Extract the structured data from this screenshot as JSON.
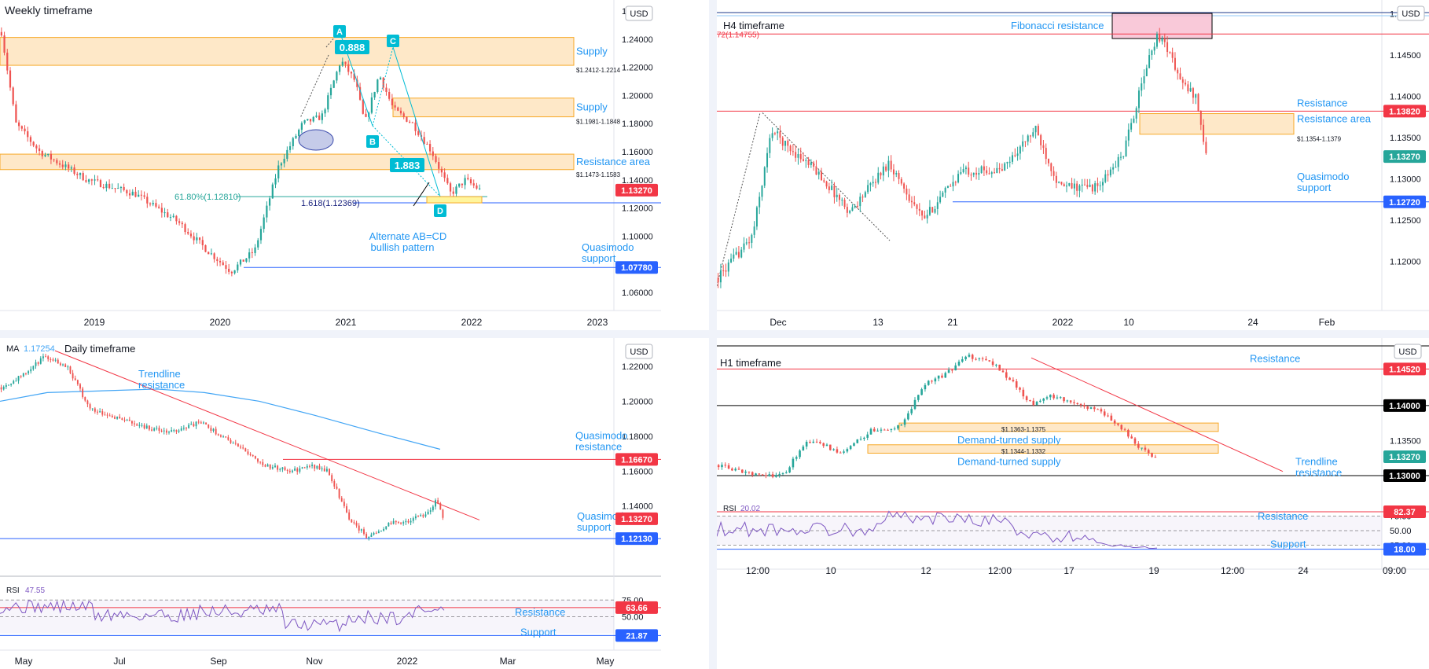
{
  "colors": {
    "up": "#26a69a",
    "down": "#ef5350",
    "zone_fill": "#fde0b6",
    "zone_stroke": "#f7a928",
    "red_line": "#f23645",
    "blue_line": "#2962ff",
    "annot": "#2196f3",
    "ma": "#42a5f5",
    "rsi": "#7e57c2",
    "teal_label": "#00bcd4",
    "axis_text": "#131722"
  },
  "panels": [
    {
      "id": "weekly",
      "title": "Weekly timeframe",
      "currency": "USD",
      "ylim": [
        1.05,
        1.265
      ],
      "ytick_labels": [
        "1.26000",
        "1.24000",
        "1.22000",
        "1.20000",
        "1.18000",
        "1.16000",
        "1.14000",
        "1.12000",
        "1.10000",
        "1.08000",
        "1.06000"
      ],
      "xtick_labels": [
        "2019",
        "2020",
        "2021",
        "2022",
        "2023"
      ],
      "price_tags": [
        {
          "label": "1.13270",
          "value": 1.1327,
          "color": "#f23645"
        },
        {
          "label": "1.07780",
          "value": 1.0778,
          "color": "#2962ff"
        }
      ],
      "zones": [
        {
          "top": 1.2412,
          "bottom": 1.2214,
          "label": "Supply",
          "range_label": "$1.2412-1.2214"
        },
        {
          "top": 1.1981,
          "bottom": 1.1848,
          "label": "Supply",
          "range_label": "$1.1981-1.1848"
        },
        {
          "top": 1.1583,
          "bottom": 1.1473,
          "label": "Resistance area",
          "range_label": "$1.1473-1.1583"
        }
      ],
      "lines": [
        {
          "value": 1.1281,
          "label": "61.80%(1.12810)",
          "color": "#26a69a"
        },
        {
          "value": 1.12369,
          "label": "1.618(1.12369)",
          "color": "#2962ff"
        },
        {
          "value": 1.0778,
          "label": "Quasimodo support",
          "color": "#2962ff"
        }
      ],
      "pattern_points": [
        "A",
        "B",
        "C",
        "D"
      ],
      "pattern_ratios": [
        "0.888",
        "1.883"
      ],
      "pattern_label": "Alternate AB=CD bullish pattern"
    },
    {
      "id": "h4",
      "title": "H4 timeframe",
      "currency": "USD",
      "ylim": [
        1.1145,
        1.1512
      ],
      "ytick_labels": [
        "1.15000",
        "1.14500",
        "1.14000",
        "1.13500",
        "1.13000",
        "1.12500",
        "1.12000"
      ],
      "xtick_labels": [
        "Dec",
        "13",
        "21",
        "2022",
        "10",
        "24",
        "Feb"
      ],
      "price_tags": [
        {
          "label": "1.13820",
          "value": 1.1382,
          "color": "#f23645"
        },
        {
          "label": "1.13270",
          "value": 1.1327,
          "color": "#26a69a"
        },
        {
          "label": "1.12720",
          "value": 1.1272,
          "color": "#2962ff"
        }
      ],
      "zones": [
        {
          "top": 1.1379,
          "bottom": 1.1354,
          "label": "Resistance area",
          "range_label": "$1.1354-1.1379"
        }
      ],
      "lines": [
        {
          "value": 1.14755,
          "label": "72(1.14755)",
          "color": "#f23645"
        },
        {
          "value": 1.1382,
          "label": "Resistance",
          "color": "#f23645"
        },
        {
          "value": 1.1272,
          "label": "Quasimodo support",
          "color": "#2962ff"
        }
      ],
      "fib_label": "Fibonacci resistance"
    },
    {
      "id": "daily",
      "title": "Daily timeframe",
      "ma_label": "MA",
      "ma_value": "1.17254",
      "currency": "USD",
      "ylim": [
        1.102,
        1.234
      ],
      "ytick_labels": [
        "1.22000",
        "1.20000",
        "1.18000",
        "1.16000",
        "1.14000"
      ],
      "xtick_labels": [
        "May",
        "Jul",
        "Sep",
        "Nov",
        "2022",
        "Mar",
        "May"
      ],
      "price_tags": [
        {
          "label": "1.16670",
          "value": 1.1667,
          "color": "#f23645"
        },
        {
          "label": "1.13270",
          "value": 1.1327,
          "color": "#f23645"
        },
        {
          "label": "1.12130",
          "value": 1.1213,
          "color": "#2962ff"
        }
      ],
      "lines": [
        {
          "value": 1.1667,
          "label": "Quasimodo resistance",
          "color": "#f23645"
        },
        {
          "value": 1.1213,
          "label": "Quasimodo support",
          "color": "#2962ff"
        }
      ],
      "trend_label": "Trendline resistance",
      "rsi_label": "RSI",
      "rsi_value": "47.55",
      "rsi_ticks": [
        "75.00",
        "50.00"
      ],
      "rsi_tags": [
        {
          "label": "63.66",
          "value": 63.66,
          "color": "#f23645"
        },
        {
          "label": "21.87",
          "value": 21.87,
          "color": "#2962ff"
        }
      ],
      "rsi_lines": [
        {
          "value": 63.66,
          "label": "Resistance",
          "color": "#f23645"
        },
        {
          "value": 21.87,
          "label": "Support",
          "color": "#2962ff"
        }
      ]
    },
    {
      "id": "h1",
      "title": "H1 timeframe",
      "currency": "USD",
      "ylim": [
        1.1272,
        1.1485
      ],
      "ytick_labels": [
        "1.13500"
      ],
      "xtick_labels": [
        "12:00",
        "10",
        "12",
        "12:00",
        "17",
        "19",
        "12:00",
        "24",
        "09:00"
      ],
      "price_tags": [
        {
          "label": "1.14520",
          "value": 1.1452,
          "color": "#f23645"
        },
        {
          "label": "1.14000",
          "value": 1.14,
          "color": "#000000"
        },
        {
          "label": "1.13270",
          "value": 1.1327,
          "color": "#26a69a"
        },
        {
          "label": "1.13000",
          "value": 1.13,
          "color": "#000000"
        }
      ],
      "zones": [
        {
          "top": 1.1375,
          "bottom": 1.1363,
          "label": "Demand-turned supply",
          "range_label": "$1.1363-1.1375"
        },
        {
          "top": 1.1344,
          "bottom": 1.1332,
          "label": "Demand-turned supply",
          "range_label": "$1.1344-1.1332"
        }
      ],
      "lines": [
        {
          "value": 1.1452,
          "label": "Resistance",
          "color": "#f23645"
        },
        {
          "value": 1.14,
          "label": "",
          "color": "#000000"
        },
        {
          "value": 1.13,
          "label": "",
          "color": "#000000"
        }
      ],
      "trend_label": "Trendline resistance",
      "rsi_label": "RSI",
      "rsi_value": "20.02",
      "rsi_ticks": [
        "75.00",
        "50.00",
        "25.00"
      ],
      "rsi_tags": [
        {
          "label": "82.37",
          "value": 82.37,
          "color": "#f23645"
        },
        {
          "label": "18.00",
          "value": 18.0,
          "color": "#2962ff"
        }
      ],
      "rsi_lines": [
        {
          "value": 82.37,
          "label": "Resistance",
          "color": "#f23645"
        },
        {
          "value": 18.0,
          "label": "Support",
          "color": "#2962ff"
        }
      ]
    }
  ],
  "chart_data": [
    {
      "type": "candlestick",
      "title": "Weekly timeframe",
      "x": [
        "2019",
        "2020",
        "2021",
        "2022",
        "2023"
      ],
      "series": [
        {
          "name": "EUR/USD weekly",
          "close_points": [
            [
              2018.9,
              1.145
            ],
            [
              2019.2,
              1.13
            ],
            [
              2019.5,
              1.125
            ],
            [
              2019.8,
              1.105
            ],
            [
              2020.0,
              1.112
            ],
            [
              2020.2,
              1.075
            ],
            [
              2020.3,
              1.09
            ],
            [
              2020.5,
              1.13
            ],
            [
              2020.6,
              1.18
            ],
            [
              2020.8,
              1.175
            ],
            [
              2021.0,
              1.225
            ],
            [
              2021.1,
              1.205
            ],
            [
              2021.2,
              1.19
            ],
            [
              2021.35,
              1.22
            ],
            [
              2021.5,
              1.185
            ],
            [
              2021.65,
              1.17
            ],
            [
              2021.8,
              1.16
            ],
            [
              2021.9,
              1.13
            ],
            [
              2022.0,
              1.14
            ],
            [
              2022.05,
              1.1327
            ]
          ]
        }
      ],
      "ylim": [
        1.05,
        1.265
      ],
      "annotations": [
        "Supply $1.2412-1.2214",
        "Supply $1.1981-1.1848",
        "Resistance area $1.1473-1.1583",
        "61.80%(1.12810)",
        "1.618(1.12369)",
        "Quasimodo support 1.07780",
        "Alternate AB=CD bullish pattern"
      ]
    },
    {
      "type": "candlestick",
      "title": "H4 timeframe",
      "x": [
        "Dec",
        "13",
        "21",
        "2022",
        "10",
        "24",
        "Feb"
      ],
      "ylim": [
        1.1145,
        1.1512
      ],
      "annotations": [
        "Fibonacci resistance",
        "72(1.14755)",
        "Resistance 1.13820",
        "Resistance area $1.1354-1.1379",
        "Quasimodo support 1.12720"
      ]
    },
    {
      "type": "candlestick",
      "title": "Daily timeframe",
      "x": [
        "May",
        "Jul",
        "Sep",
        "Nov",
        "2022",
        "Mar",
        "May"
      ],
      "ylim": [
        1.102,
        1.234
      ],
      "series": [
        {
          "name": "MA",
          "last": 1.17254
        },
        {
          "name": "RSI",
          "last": 47.55
        }
      ],
      "annotations": [
        "Trendline resistance",
        "Quasimodo resistance 1.16670",
        "Quasimodo support 1.12130",
        "RSI Resistance 63.66",
        "RSI Support 21.87"
      ]
    },
    {
      "type": "candlestick",
      "title": "H1 timeframe",
      "x": [
        "12:00",
        "10",
        "12",
        "12:00",
        "17",
        "19",
        "12:00",
        "24",
        "09:00"
      ],
      "ylim": [
        1.1272,
        1.1485
      ],
      "series": [
        {
          "name": "RSI",
          "last": 20.02
        }
      ],
      "annotations": [
        "Resistance 1.14520",
        "1.14000",
        "1.13000",
        "Demand-turned supply $1.1363-1.1375",
        "Demand-turned supply $1.1344-1.1332",
        "Trendline resistance",
        "RSI Resistance 82.37",
        "RSI Support 18.00"
      ]
    }
  ]
}
